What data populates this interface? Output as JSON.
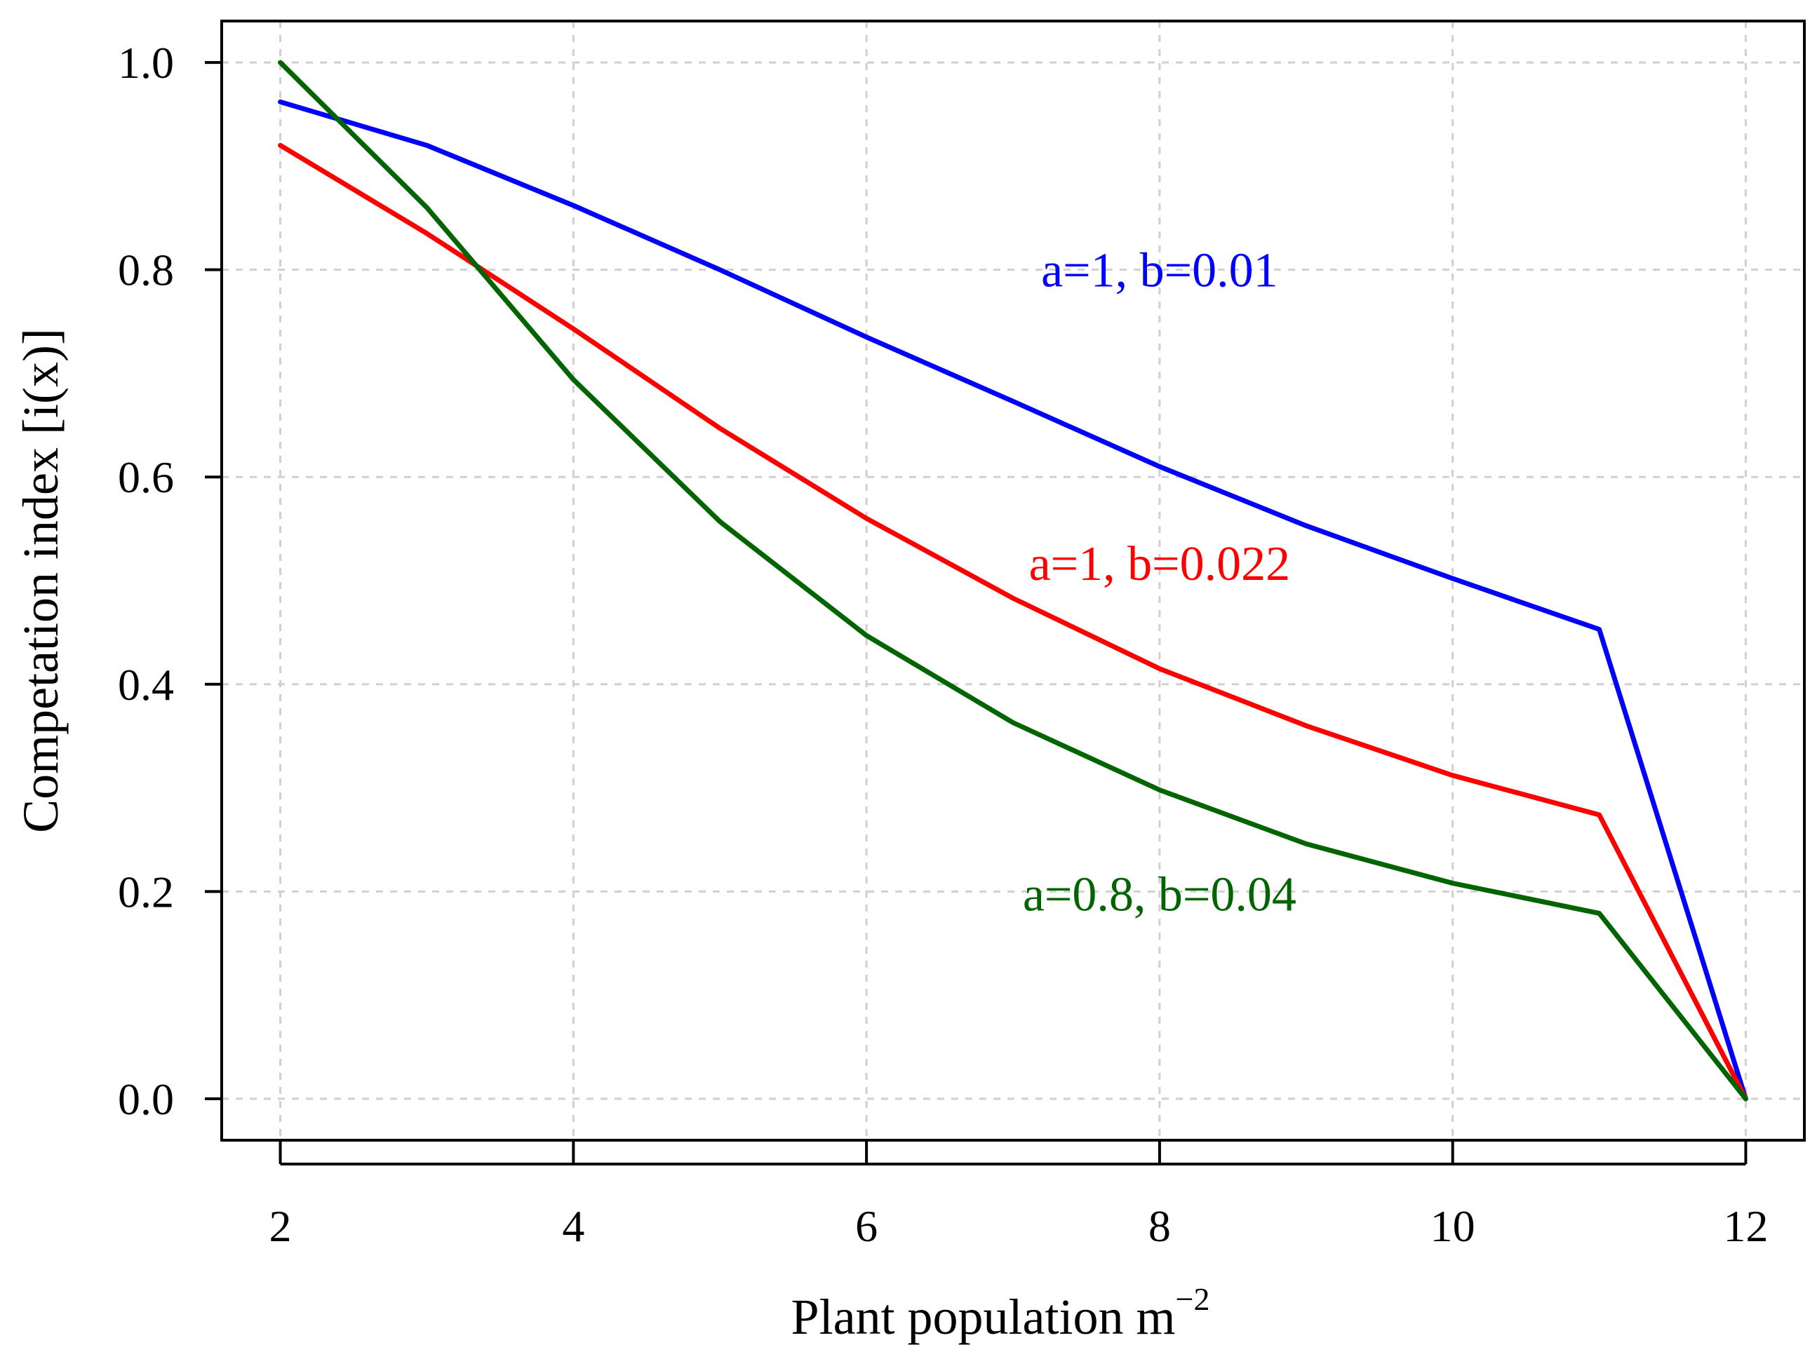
{
  "chart_data": {
    "type": "line",
    "title": "",
    "xlabel": "Plant population m",
    "xlabel_superscript": "−2",
    "ylabel": "Competation index [i(x)]",
    "xlim": [
      1.6,
      12.4
    ],
    "ylim": [
      -0.04,
      1.04
    ],
    "grid": true,
    "x_ticks": [
      2,
      4,
      6,
      8,
      10,
      12
    ],
    "x_tick_labels": [
      "2",
      "4",
      "6",
      "8",
      "10",
      "12"
    ],
    "y_ticks": [
      0.0,
      0.2,
      0.4,
      0.6,
      0.8,
      1.0
    ],
    "y_tick_labels": [
      "0.0",
      "0.2",
      "0.4",
      "0.6",
      "0.8",
      "1.0"
    ],
    "x": [
      2,
      3,
      4,
      5,
      6,
      7,
      8,
      9,
      10,
      11,
      12
    ],
    "series": [
      {
        "name": "a=1, b=0.01",
        "color": "#0000ff",
        "values": [
          0.962,
          0.92,
          0.862,
          0.8,
          0.735,
          0.673,
          0.61,
          0.553,
          0.502,
          0.453,
          0.0
        ],
        "label_at": [
          8.0,
          0.8
        ]
      },
      {
        "name": "a=1, b=0.022",
        "color": "#ff0000",
        "values": [
          0.92,
          0.835,
          0.743,
          0.647,
          0.56,
          0.483,
          0.415,
          0.36,
          0.312,
          0.274,
          0.0
        ],
        "label_at": [
          8.0,
          0.517
        ]
      },
      {
        "name": "a=0.8, b=0.04",
        "color": "#006400",
        "values": [
          1.0,
          0.86,
          0.694,
          0.557,
          0.447,
          0.363,
          0.298,
          0.246,
          0.208,
          0.179,
          0.0
        ],
        "label_at": [
          8.0,
          0.198
        ]
      }
    ]
  }
}
